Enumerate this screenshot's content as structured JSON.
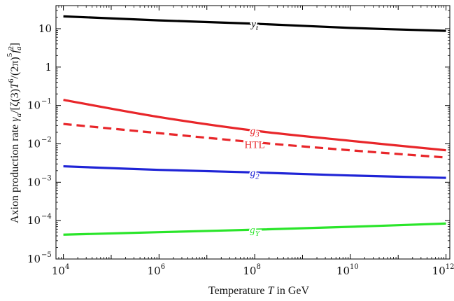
{
  "chart_data": {
    "type": "line",
    "xlabel": "Temperature T in GeV",
    "ylabel": "Axion production rate γa/[ζ(3)T⁶/(2π)⁵ fa²]",
    "x_scale": "log",
    "y_scale": "log",
    "xlim": [
      7000,
      1200000000000.0
    ],
    "ylim": [
      1e-05,
      40
    ],
    "x_ticks": [
      {
        "value": 10000.0,
        "base": "10",
        "exp": "4"
      },
      {
        "value": 1000000.0,
        "base": "10",
        "exp": "6"
      },
      {
        "value": 100000000.0,
        "base": "10",
        "exp": "8"
      },
      {
        "value": 10000000000.0,
        "base": "10",
        "exp": "10"
      },
      {
        "value": 1000000000000.0,
        "base": "10",
        "exp": "12"
      }
    ],
    "y_ticks": [
      {
        "value": 1e-05,
        "base": "10",
        "exp": "−5"
      },
      {
        "value": 0.0001,
        "base": "10",
        "exp": "−4"
      },
      {
        "value": 0.001,
        "base": "10",
        "exp": "−3"
      },
      {
        "value": 0.01,
        "base": "10",
        "exp": "−2"
      },
      {
        "value": 0.1,
        "base": "10",
        "exp": "−1"
      },
      {
        "value": 1,
        "base": "1",
        "exp": ""
      },
      {
        "value": 10,
        "base": "10",
        "exp": ""
      }
    ],
    "grid": false,
    "series": [
      {
        "name": "yt",
        "label_main": "y",
        "label_sub": "t",
        "color": "#000000",
        "dash": false,
        "x": [
          10000.0,
          1000000.0,
          100000000.0,
          10000000000.0,
          1000000000000.0
        ],
        "y": [
          21,
          16.5,
          13.5,
          10.5,
          8.8
        ],
        "label_x": 100000000.0,
        "label_y": 13.5
      },
      {
        "name": "g3",
        "label_main": "g",
        "label_sub": "3",
        "color": "#e8262a",
        "dash": false,
        "x": [
          10000.0,
          1000000.0,
          100000000.0,
          10000000000.0,
          1000000000000.0
        ],
        "y": [
          0.14,
          0.05,
          0.022,
          0.012,
          0.0068
        ],
        "label_x": 100000000.0,
        "label_y": 0.022
      },
      {
        "name": "HTL",
        "label_main": "HTL",
        "label_sub": "",
        "color": "#e8262a",
        "dash": true,
        "x": [
          10000.0,
          1000000.0,
          100000000.0,
          10000000000.0,
          1000000000000.0
        ],
        "y": [
          0.033,
          0.019,
          0.011,
          0.0068,
          0.0044
        ],
        "label_x": 100000000.0,
        "label_y": 0.0095
      },
      {
        "name": "g2",
        "label_main": "g",
        "label_sub": "2",
        "color": "#1f24d6",
        "dash": false,
        "x": [
          10000.0,
          1000000.0,
          100000000.0,
          10000000000.0,
          1000000000000.0
        ],
        "y": [
          0.0026,
          0.0021,
          0.0018,
          0.0015,
          0.0013
        ],
        "label_x": 100000000.0,
        "label_y": 0.0018
      },
      {
        "name": "gY",
        "label_main": "g",
        "label_sub": "Y",
        "color": "#2ae52a",
        "dash": false,
        "x": [
          10000.0,
          1000000.0,
          100000000.0,
          10000000000.0,
          1000000000000.0
        ],
        "y": [
          4.3e-05,
          5e-05,
          5.8e-05,
          6.9e-05,
          8.4e-05
        ],
        "label_x": 100000000.0,
        "label_y": 5.8e-05
      }
    ]
  }
}
